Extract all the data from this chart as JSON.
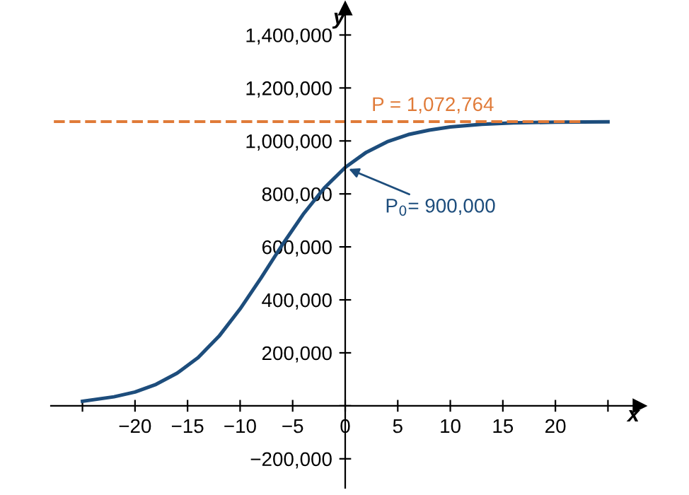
{
  "chart_data": {
    "type": "line",
    "xlabel": "x",
    "ylabel": "y",
    "x": [
      -25,
      -22,
      -20,
      -18,
      -16,
      -14,
      -12,
      -10,
      -8,
      -6,
      -4,
      -2,
      0,
      2,
      4,
      6,
      8,
      10,
      13,
      16,
      20,
      25
    ],
    "series": [
      {
        "color": "#1d4d7c",
        "values": [
          17000,
          34000,
          52000,
          81000,
          123000,
          182000,
          263000,
          366000,
          483000,
          607000,
          723000,
          822000,
          900000,
          957000,
          997000,
          1024000,
          1041000,
          1053000,
          1063000,
          1068000,
          1071000,
          1072000
        ]
      }
    ],
    "xlim": [
      -28,
      28
    ],
    "ylim": [
      -310000,
      1500000
    ],
    "xticks": [
      {
        "value": -25,
        "label": null
      },
      {
        "value": -20,
        "label": "−20"
      },
      {
        "value": -15,
        "label": "−15"
      },
      {
        "value": -10,
        "label": "−10"
      },
      {
        "value": -5,
        "label": "−5"
      },
      {
        "value": 0,
        "label": "0"
      },
      5,
      10,
      15,
      20,
      {
        "value": 25,
        "label": null
      }
    ],
    "yticks": [
      {
        "value": -200000,
        "label": "−200,000"
      },
      {
        "value": 0,
        "label": null
      },
      {
        "value": 200000,
        "label": "200,000"
      },
      {
        "value": 400000,
        "label": "400,000"
      },
      {
        "value": 600000,
        "label": "600,000"
      },
      {
        "value": 800000,
        "label": "800,000"
      },
      {
        "value": 1000000,
        "label": "1,000,000"
      },
      {
        "value": 1200000,
        "label": "1,200,000"
      },
      {
        "value": 1400000,
        "label": "1,400,000"
      }
    ],
    "ref_lines": [
      {
        "axis": "y",
        "value": 1072764,
        "label": "P = 1,072,764",
        "color": "#e07b39",
        "line_style": "dashed"
      }
    ],
    "annotations": [
      {
        "text": "P$_{0}$= 900,000",
        "x": 0,
        "y": 900000
      }
    ],
    "grid": false,
    "legend": false,
    "marker": "none",
    "line_style": "solid"
  }
}
